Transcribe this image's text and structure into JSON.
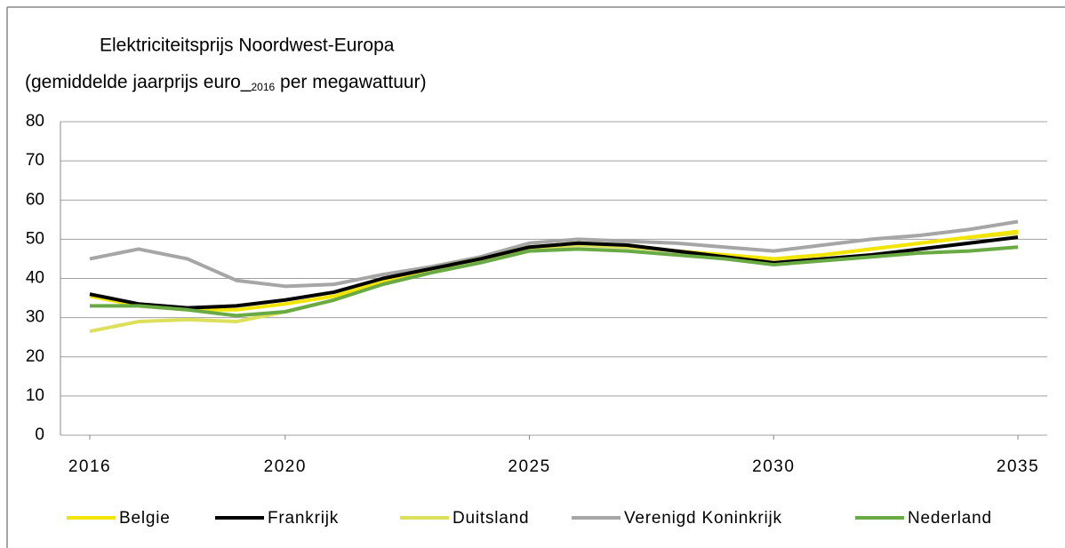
{
  "chart_data": {
    "type": "line",
    "title": "Elektriciteitsprijs Noordwest-Europa",
    "subtitle": [
      "(gemiddelde jaarprijs euro_",
      "2016",
      " per megawattuur)"
    ],
    "x": [
      2016,
      2017,
      2018,
      2019,
      2020,
      2021,
      2022,
      2023,
      2024,
      2025,
      2026,
      2027,
      2028,
      2029,
      2030,
      2031,
      2032,
      2033,
      2034,
      2035
    ],
    "series": [
      {
        "name": "Belgie",
        "color": "#f2e600",
        "values": [
          35.5,
          33,
          32,
          32,
          33.5,
          35.5,
          39.5,
          42.5,
          45,
          48,
          49,
          48.5,
          47,
          46,
          45,
          46,
          47.5,
          49,
          50.5,
          52
        ]
      },
      {
        "name": "Frankrijk",
        "color": "#000000",
        "values": [
          36,
          33.5,
          32.5,
          33,
          34.5,
          36.5,
          40,
          42.5,
          45,
          48,
          49,
          48.5,
          47,
          45.5,
          44,
          45,
          46,
          47.5,
          49,
          50.5
        ]
      },
      {
        "name": "Duitsland",
        "color": "#dde05a",
        "values": [
          26.5,
          29,
          29.5,
          29,
          31.5,
          34.5,
          39,
          42,
          44.5,
          47.5,
          48.5,
          48,
          47,
          46,
          45,
          46,
          47.5,
          49,
          50.5,
          51.5
        ]
      },
      {
        "name": "Verenigd Koninkrijk",
        "color": "#a6a6a6",
        "values": [
          45,
          47.5,
          45,
          39.5,
          38,
          38.5,
          41,
          43,
          45.5,
          49,
          50,
          49.5,
          49,
          48,
          47,
          48.5,
          50,
          51,
          52.5,
          54.5
        ]
      },
      {
        "name": "Nederland",
        "color": "#6aaa45",
        "values": [
          33,
          33,
          32,
          30.5,
          31.5,
          34.5,
          38.5,
          41.5,
          44,
          47,
          47.5,
          47,
          46,
          45,
          43.5,
          44.5,
          45.5,
          46.5,
          47,
          48
        ]
      }
    ],
    "xlim": [
      2015.4,
      2035.6
    ],
    "xticks": [
      2016,
      2020,
      2025,
      2030,
      2035
    ],
    "ylim": [
      0,
      80
    ],
    "yticks": [
      0,
      10,
      20,
      30,
      40,
      50,
      60,
      70,
      80
    ],
    "grid": true,
    "legend": "bottom"
  }
}
